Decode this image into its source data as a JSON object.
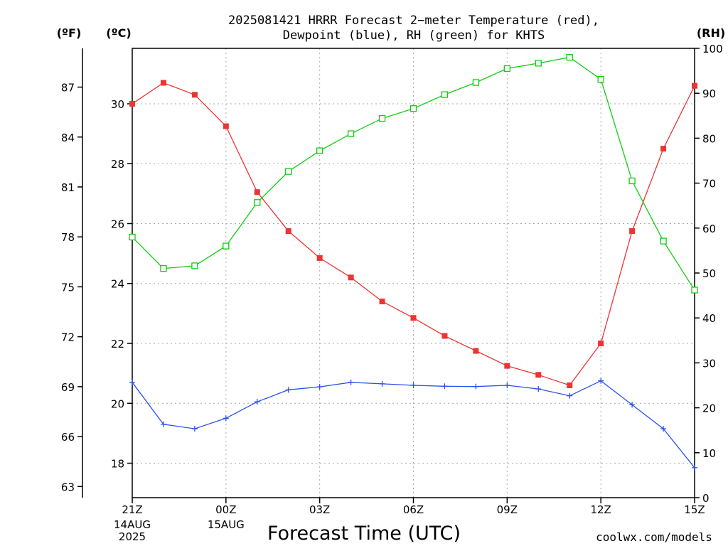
{
  "title_line1": "2025081421 HRRR Forecast 2−meter Temperature (red),",
  "title_line2": "Dewpoint (blue), RH (green) for KHTS",
  "units": {
    "fahrenheit": "(ºF)",
    "celsius": "(ºC)",
    "rh": "(RH)"
  },
  "xlabel": "Forecast Time (UTC)",
  "credit": "coolwx.com/models",
  "colors": {
    "temperature": "#ee3333",
    "dewpoint": "#2a4ff0",
    "rh": "#11cc11",
    "credit": "#d93a3a"
  },
  "chart_data": {
    "type": "line",
    "x": [
      "21Z",
      "22Z",
      "23Z",
      "00Z",
      "01Z",
      "02Z",
      "03Z",
      "04Z",
      "05Z",
      "06Z",
      "07Z",
      "08Z",
      "09Z",
      "10Z",
      "11Z",
      "12Z",
      "13Z",
      "14Z",
      "15Z"
    ],
    "x_ticks": [
      {
        "index": 0,
        "label": "21Z",
        "sub": [
          "14AUG",
          "2025"
        ]
      },
      {
        "index": 3,
        "label": "00Z",
        "sub": [
          "15AUG"
        ]
      },
      {
        "index": 6,
        "label": "03Z",
        "sub": []
      },
      {
        "index": 9,
        "label": "06Z",
        "sub": []
      },
      {
        "index": 12,
        "label": "09Z",
        "sub": []
      },
      {
        "index": 15,
        "label": "12Z",
        "sub": []
      },
      {
        "index": 18,
        "label": "15Z",
        "sub": []
      }
    ],
    "y_celsius": {
      "lim": [
        16.85,
        31.85
      ],
      "ticks": [
        18,
        20,
        22,
        24,
        26,
        28,
        30
      ]
    },
    "y_fahrenheit": {
      "ticks": [
        63,
        66,
        69,
        72,
        75,
        78,
        81,
        84,
        87
      ]
    },
    "y_rh": {
      "lim": [
        0,
        100
      ],
      "ticks": [
        0,
        10,
        20,
        30,
        40,
        50,
        60,
        70,
        80,
        90,
        100
      ]
    },
    "grid": true,
    "series": [
      {
        "name": "Temperature",
        "axis": "celsius",
        "marker": "filled-square",
        "values": [
          30.0,
          30.7,
          30.3,
          29.25,
          27.05,
          25.75,
          24.85,
          24.2,
          23.4,
          22.85,
          22.25,
          21.75,
          21.25,
          20.95,
          20.6,
          22.0,
          25.75,
          28.5,
          30.6
        ]
      },
      {
        "name": "Dewpoint",
        "axis": "celsius",
        "marker": "plus",
        "values": [
          20.7,
          19.3,
          19.15,
          19.5,
          20.05,
          20.45,
          20.55,
          20.7,
          20.65,
          20.6,
          20.57,
          20.56,
          20.6,
          20.48,
          20.25,
          20.75,
          19.95,
          19.15,
          17.85
        ]
      },
      {
        "name": "RH",
        "axis": "rh",
        "marker": "open-square",
        "values": [
          58.0,
          51.0,
          51.6,
          56.0,
          65.7,
          72.6,
          77.2,
          81.0,
          84.4,
          86.6,
          89.7,
          92.4,
          95.5,
          96.7,
          98.0,
          93.1,
          70.5,
          57.1,
          46.2
        ]
      }
    ]
  }
}
